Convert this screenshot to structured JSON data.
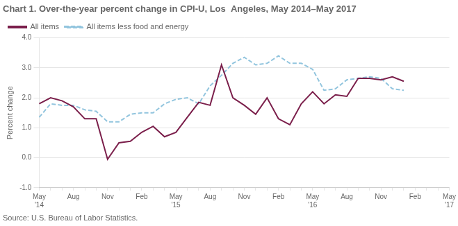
{
  "chart_data": {
    "type": "line",
    "title": "Chart 1. Over-the-year percent change in CPI-U, Los  Angeles, May 2014–May 2017",
    "ylabel": "Percent change",
    "annotations": [
      "Source: U.S. Bureau of Labor Statistics."
    ],
    "categories": [
      "May\n'14",
      null,
      null,
      "Aug",
      null,
      null,
      "Nov",
      null,
      null,
      "Feb",
      null,
      null,
      "May\n'15",
      null,
      null,
      "Aug",
      null,
      null,
      "Nov",
      null,
      null,
      "Feb",
      null,
      null,
      "May\n'16",
      null,
      null,
      "Aug",
      null,
      null,
      "Nov",
      null,
      null,
      "Feb",
      null,
      null,
      "May\n'17"
    ],
    "series": [
      {
        "name": "All items",
        "color": "#7B1F4B",
        "line_style": "solid",
        "marker": "none",
        "values": [
          1.8,
          2.0,
          1.9,
          1.7,
          1.3,
          1.3,
          -0.05,
          0.5,
          0.55,
          0.85,
          1.05,
          0.7,
          0.85,
          1.35,
          1.85,
          1.75,
          3.1,
          2.0,
          1.75,
          1.45,
          2.0,
          1.3,
          1.1,
          1.8,
          2.2,
          1.8,
          2.1,
          2.05,
          2.65,
          2.65,
          2.6,
          2.7,
          2.55,
          null,
          null,
          null,
          null
        ]
      },
      {
        "name": "All items less food and energy",
        "color": "#92C5DE",
        "line_style": "dashed",
        "marker": "none",
        "values": [
          1.35,
          1.8,
          1.75,
          1.75,
          1.6,
          1.55,
          1.2,
          1.2,
          1.45,
          1.5,
          1.5,
          1.8,
          1.95,
          2.0,
          1.8,
          2.4,
          2.75,
          3.15,
          3.35,
          3.1,
          3.15,
          3.4,
          3.15,
          3.15,
          2.95,
          2.25,
          2.3,
          2.6,
          2.65,
          2.7,
          2.65,
          2.3,
          2.25,
          null,
          null,
          null,
          null
        ]
      }
    ],
    "ylim": [
      -1.0,
      4.0
    ],
    "yticks": [
      {
        "value": -1.0,
        "label": "-1.0"
      },
      {
        "value": 0.0,
        "label": "0.0"
      },
      {
        "value": 1.0,
        "label": "1.0"
      },
      {
        "value": 2.0,
        "label": "2.0"
      },
      {
        "value": 3.0,
        "label": "3.0"
      },
      {
        "value": 4.0,
        "label": "4.0"
      }
    ],
    "grid": true,
    "legend": "upper left"
  }
}
